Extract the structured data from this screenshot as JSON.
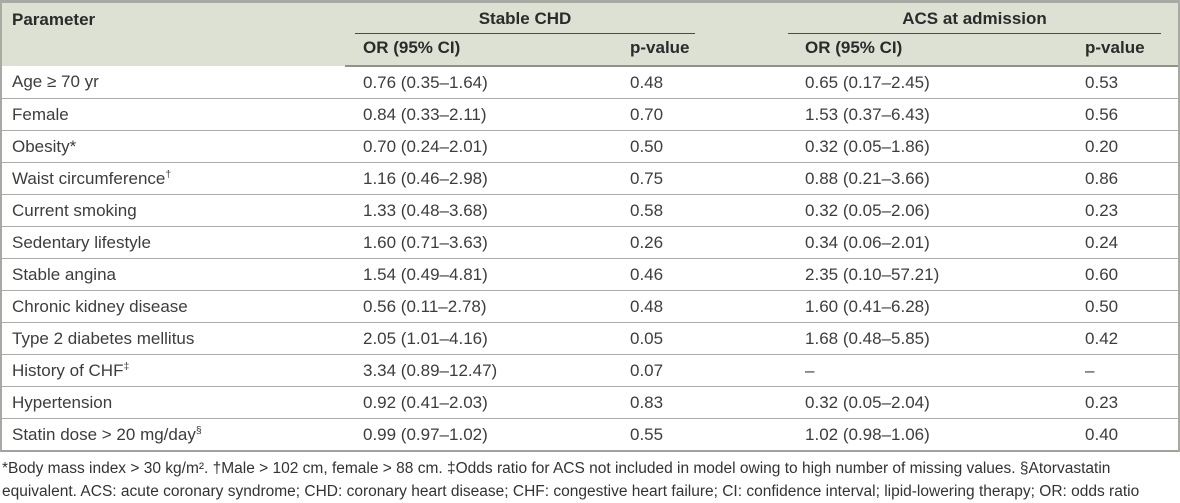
{
  "table": {
    "header": {
      "parameter_label": "Parameter",
      "group1": "Stable CHD",
      "group2": "ACS at admission",
      "or_ci_label": "OR (95% CI)",
      "p_value_label": "p-value"
    },
    "rows": [
      {
        "parameter": "Age ≥ 70 yr",
        "sup": "",
        "chd_or": "0.76 (0.35–1.64)",
        "chd_p": "0.48",
        "acs_or": "0.65 (0.17–2.45)",
        "acs_p": "0.53"
      },
      {
        "parameter": "Female",
        "sup": "",
        "chd_or": "0.84 (0.33–2.11)",
        "chd_p": "0.70",
        "acs_or": "1.53 (0.37–6.43)",
        "acs_p": "0.56"
      },
      {
        "parameter": "Obesity*",
        "sup": "",
        "chd_or": "0.70 (0.24–2.01)",
        "chd_p": "0.50",
        "acs_or": "0.32 (0.05–1.86)",
        "acs_p": "0.20"
      },
      {
        "parameter": "Waist circumference",
        "sup": "†",
        "chd_or": "1.16 (0.46–2.98)",
        "chd_p": "0.75",
        "acs_or": "0.88 (0.21–3.66)",
        "acs_p": "0.86"
      },
      {
        "parameter": "Current smoking",
        "sup": "",
        "chd_or": "1.33 (0.48–3.68)",
        "chd_p": "0.58",
        "acs_or": "0.32 (0.05–2.06)",
        "acs_p": "0.23"
      },
      {
        "parameter": "Sedentary lifestyle",
        "sup": "",
        "chd_or": "1.60 (0.71–3.63)",
        "chd_p": "0.26",
        "acs_or": "0.34 (0.06–2.01)",
        "acs_p": "0.24"
      },
      {
        "parameter": "Stable angina",
        "sup": "",
        "chd_or": "1.54 (0.49–4.81)",
        "chd_p": "0.46",
        "acs_or": "2.35 (0.10–57.21)",
        "acs_p": "0.60"
      },
      {
        "parameter": "Chronic kidney disease",
        "sup": "",
        "chd_or": "0.56 (0.11–2.78)",
        "chd_p": "0.48",
        "acs_or": "1.60 (0.41–6.28)",
        "acs_p": "0.50"
      },
      {
        "parameter": "Type 2 diabetes mellitus",
        "sup": "",
        "chd_or": "2.05 (1.01–4.16)",
        "chd_p": "0.05",
        "acs_or": "1.68 (0.48–5.85)",
        "acs_p": "0.42"
      },
      {
        "parameter": "History of CHF",
        "sup": "‡",
        "chd_or": "3.34 (0.89–12.47)",
        "chd_p": "0.07",
        "acs_or": "–",
        "acs_p": "–"
      },
      {
        "parameter": "Hypertension",
        "sup": "",
        "chd_or": "0.92 (0.41–2.03)",
        "chd_p": "0.83",
        "acs_or": "0.32 (0.05–2.04)",
        "acs_p": "0.23"
      },
      {
        "parameter": "Statin dose > 20 mg/day",
        "sup": "§",
        "chd_or": "0.99 (0.97–1.02)",
        "chd_p": "0.55",
        "acs_or": "1.02 (0.98–1.06)",
        "acs_p": "0.40"
      }
    ],
    "footnote": "*Body mass index > 30 kg/m². †Male > 102 cm, female > 88 cm. ‡Odds ratio for ACS not included in model owing to high number of missing values. §Atorvastatin equivalent. ACS: acute coronary syndrome; CHD: coronary heart disease; CHF: congestive heart failure; CI: confidence interval; lipid-lowering therapy; OR: odds ratio"
  },
  "colors": {
    "header_background": "#dce1d3",
    "outer_border": "#a7a9a3",
    "row_divider": "#abada7",
    "group_underline": "#4a4a4a",
    "body_text": "#3d3d3d"
  }
}
